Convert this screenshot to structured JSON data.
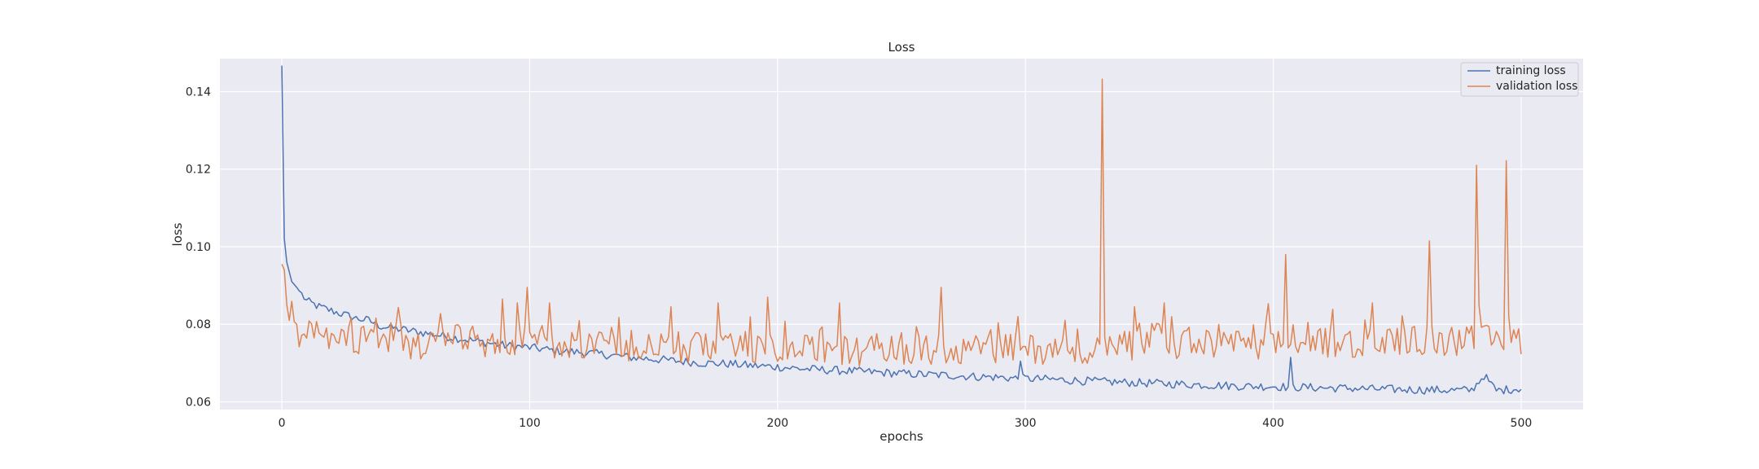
{
  "chart_data": {
    "type": "line",
    "title": "Loss",
    "xlabel": "epochs",
    "ylabel": "loss",
    "xlim": [
      -25,
      525
    ],
    "ylim": [
      0.058,
      0.1485
    ],
    "xticks": [
      0,
      100,
      200,
      300,
      400,
      500
    ],
    "yticks": [
      0.06,
      0.08,
      0.1,
      0.12,
      0.14
    ],
    "ytick_labels": [
      "0.06",
      "0.08",
      "0.10",
      "0.12",
      "0.14"
    ],
    "grid": true,
    "background": "#EAEAF2",
    "legend_position": "top-right",
    "series": [
      {
        "name": "training loss",
        "color": "#4C72B0",
        "points": [
          [
            0,
            0.1467
          ],
          [
            1,
            0.102
          ],
          [
            2,
            0.096
          ],
          [
            4,
            0.091
          ],
          [
            6,
            0.0895
          ],
          [
            10,
            0.086
          ],
          [
            15,
            0.0845
          ],
          [
            20,
            0.0835
          ],
          [
            25,
            0.0825
          ],
          [
            30,
            0.0815
          ],
          [
            35,
            0.081
          ],
          [
            40,
            0.0795
          ],
          [
            50,
            0.0785
          ],
          [
            60,
            0.0775
          ],
          [
            70,
            0.0765
          ],
          [
            80,
            0.0755
          ],
          [
            90,
            0.0745
          ],
          [
            100,
            0.074
          ],
          [
            110,
            0.0732
          ],
          [
            120,
            0.0728
          ],
          [
            130,
            0.0722
          ],
          [
            140,
            0.0715
          ],
          [
            150,
            0.071
          ],
          [
            160,
            0.0705
          ],
          [
            170,
            0.07
          ],
          [
            180,
            0.0698
          ],
          [
            190,
            0.0693
          ],
          [
            200,
            0.069
          ],
          [
            210,
            0.0685
          ],
          [
            220,
            0.0682
          ],
          [
            230,
            0.0679
          ],
          [
            240,
            0.0676
          ],
          [
            250,
            0.0673
          ],
          [
            260,
            0.067
          ],
          [
            270,
            0.0668
          ],
          [
            280,
            0.0665
          ],
          [
            290,
            0.0663
          ],
          [
            297,
            0.066
          ],
          [
            298,
            0.0715
          ],
          [
            299,
            0.066
          ],
          [
            310,
            0.0658
          ],
          [
            320,
            0.0655
          ],
          [
            330,
            0.0652
          ],
          [
            340,
            0.065
          ],
          [
            350,
            0.0648
          ],
          [
            360,
            0.0646
          ],
          [
            370,
            0.0644
          ],
          [
            380,
            0.0642
          ],
          [
            390,
            0.064
          ],
          [
            400,
            0.064
          ],
          [
            406,
            0.0638
          ],
          [
            407,
            0.0705
          ],
          [
            408,
            0.0638
          ],
          [
            420,
            0.0636
          ],
          [
            430,
            0.0635
          ],
          [
            440,
            0.0633
          ],
          [
            450,
            0.0632
          ],
          [
            460,
            0.0631
          ],
          [
            470,
            0.063
          ],
          [
            480,
            0.063
          ],
          [
            485,
            0.0668
          ],
          [
            490,
            0.0629
          ],
          [
            500,
            0.0635
          ]
        ],
        "noise_amplitude": 0.0011
      },
      {
        "name": "validation loss",
        "color": "#DD8452",
        "points": [
          [
            0,
            0.0955
          ],
          [
            1,
            0.094
          ],
          [
            2,
            0.085
          ],
          [
            3,
            0.083
          ],
          [
            5,
            0.0825
          ],
          [
            7,
            0.078
          ],
          [
            10,
            0.0775
          ],
          [
            15,
            0.078
          ],
          [
            20,
            0.077
          ],
          [
            30,
            0.0765
          ],
          [
            40,
            0.075
          ],
          [
            50,
            0.0748
          ],
          [
            60,
            0.0752
          ],
          [
            70,
            0.0758
          ],
          [
            80,
            0.0755
          ],
          [
            90,
            0.0752
          ],
          [
            100,
            0.075
          ],
          [
            110,
            0.0748
          ],
          [
            120,
            0.0745
          ],
          [
            130,
            0.0742
          ],
          [
            140,
            0.074
          ],
          [
            150,
            0.074
          ],
          [
            160,
            0.0738
          ],
          [
            170,
            0.0738
          ],
          [
            180,
            0.0736
          ],
          [
            190,
            0.0735
          ],
          [
            200,
            0.0735
          ],
          [
            210,
            0.0733
          ],
          [
            220,
            0.0733
          ],
          [
            230,
            0.0732
          ],
          [
            240,
            0.0732
          ],
          [
            250,
            0.0732
          ],
          [
            260,
            0.0733
          ],
          [
            270,
            0.0733
          ],
          [
            280,
            0.0734
          ],
          [
            290,
            0.0734
          ],
          [
            300,
            0.0735
          ],
          [
            310,
            0.0737
          ],
          [
            320,
            0.0738
          ],
          [
            330,
            0.074
          ],
          [
            340,
            0.0742
          ],
          [
            350,
            0.0743
          ],
          [
            360,
            0.0745
          ],
          [
            370,
            0.0746
          ],
          [
            380,
            0.0747
          ],
          [
            390,
            0.0748
          ],
          [
            400,
            0.075
          ],
          [
            410,
            0.075
          ],
          [
            420,
            0.0752
          ],
          [
            430,
            0.0753
          ],
          [
            440,
            0.0755
          ],
          [
            450,
            0.0755
          ],
          [
            460,
            0.0757
          ],
          [
            470,
            0.0757
          ],
          [
            480,
            0.0758
          ],
          [
            490,
            0.0758
          ],
          [
            500,
            0.0762
          ]
        ],
        "noise_amplitude": 0.004,
        "spikes": [
          [
            89,
            0.0865
          ],
          [
            95,
            0.0855
          ],
          [
            99,
            0.0895
          ],
          [
            108,
            0.0855
          ],
          [
            157,
            0.0845
          ],
          [
            176,
            0.0855
          ],
          [
            196,
            0.087
          ],
          [
            225,
            0.0855
          ],
          [
            266,
            0.0895
          ],
          [
            297,
            0.082
          ],
          [
            331,
            0.1432
          ],
          [
            344,
            0.0845
          ],
          [
            356,
            0.0855
          ],
          [
            405,
            0.098
          ],
          [
            440,
            0.0855
          ],
          [
            463,
            0.1015
          ],
          [
            482,
            0.121
          ],
          [
            494,
            0.1222
          ]
        ]
      }
    ]
  }
}
